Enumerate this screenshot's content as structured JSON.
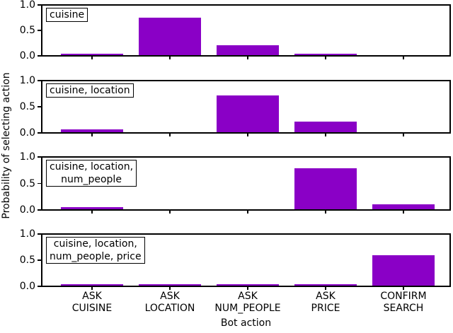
{
  "chart_data": {
    "type": "bar",
    "title": "",
    "xlabel": "Bot action",
    "ylabel": "Probability of selecting action",
    "ylim": [
      0,
      1.0
    ],
    "yticks": [
      "0.0",
      "0.5",
      "1.0"
    ],
    "grid": false,
    "legend": "none",
    "bar_color": "#8A00C6",
    "frame_color": "#000000",
    "background_color": "#ffffff",
    "categories": [
      "ASK CUISINE",
      "ASK LOCATION",
      "ASK NUM_PEOPLE",
      "ASK PRICE",
      "CONFIRM SEARCH"
    ],
    "category_label_lines": [
      [
        "ASK",
        "CUISINE"
      ],
      [
        "ASK",
        "LOCATION"
      ],
      [
        "ASK",
        "NUM_PEOPLE"
      ],
      [
        "ASK",
        "PRICE"
      ],
      [
        "CONFIRM",
        "SEARCH"
      ]
    ],
    "category_names": [
      "ask-cuisine",
      "ask-location",
      "ask-num-people",
      "ask-price",
      "confirm-search"
    ],
    "subplots": [
      {
        "label": "cuisine",
        "label_lines": [
          "cuisine"
        ],
        "values": [
          0.02,
          0.75,
          0.2,
          0.03,
          0.0
        ]
      },
      {
        "label": "cuisine, location",
        "label_lines": [
          "cuisine, location"
        ],
        "values": [
          0.05,
          0.0,
          0.72,
          0.21,
          0.0
        ]
      },
      {
        "label": "cuisine, location, num_people",
        "label_lines": [
          "cuisine, location,",
          "num_people"
        ],
        "values": [
          0.04,
          0.0,
          0.0,
          0.8,
          0.1
        ]
      },
      {
        "label": "cuisine, location, num_people, price",
        "label_lines": [
          "cuisine, location,",
          "num_people, price"
        ],
        "values": [
          0.02,
          0.02,
          0.01,
          0.01,
          0.6
        ]
      }
    ]
  }
}
